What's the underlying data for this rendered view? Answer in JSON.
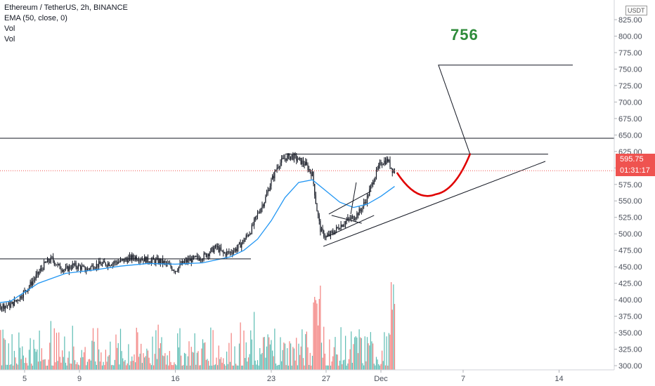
{
  "legend": {
    "symbol": "Ethereum / TetherUS, 2h, BINANCE",
    "indicator1": "EMA (50, close, 0)",
    "indicator2": "Vol",
    "indicator3": "Vol"
  },
  "axis": {
    "unit": "USDT",
    "y_ticks": [
      "825.00",
      "800.00",
      "775.00",
      "750.00",
      "725.00",
      "700.00",
      "675.00",
      "650.00",
      "625.00",
      "600.00",
      "575.00",
      "550.00",
      "525.00",
      "500.00",
      "475.00",
      "450.00",
      "425.00",
      "400.00",
      "375.00",
      "350.00",
      "325.00",
      "300.00"
    ],
    "x_ticks": [
      "5",
      "9",
      "16",
      "23",
      "27",
      "Dec",
      "7",
      "14"
    ]
  },
  "current_price": "595.75",
  "countdown": "01:31:17",
  "annotation_target": "756",
  "colors": {
    "up": "#26a69a",
    "down": "#ef5350",
    "candle": "#131722",
    "ema": "#2196f3",
    "projection": "#e00000",
    "target": "#2e8b3a"
  },
  "chart_data": {
    "type": "candlestick",
    "timeframe": "2h",
    "ylim": [
      300,
      825
    ],
    "y_tick_values": [
      825,
      800,
      775,
      750,
      725,
      700,
      675,
      650,
      625,
      600,
      575,
      550,
      525,
      500,
      475,
      450,
      425,
      400,
      375,
      350,
      325,
      300
    ],
    "x_tick_days": [
      5,
      9,
      16,
      23,
      27,
      31,
      37,
      44
    ],
    "current_price": 595.75,
    "price_path": [
      [
        1.0,
        385
      ],
      [
        2.0,
        395
      ],
      [
        3.0,
        390
      ],
      [
        4.0,
        392
      ],
      [
        4.7,
        405
      ],
      [
        5.3,
        420
      ],
      [
        6.0,
        440
      ],
      [
        6.5,
        455
      ],
      [
        7.0,
        462
      ],
      [
        7.5,
        450
      ],
      [
        8.0,
        445
      ],
      [
        8.5,
        452
      ],
      [
        9.0,
        450
      ],
      [
        9.5,
        445
      ],
      [
        10.0,
        452
      ],
      [
        11.0,
        455
      ],
      [
        12.0,
        458
      ],
      [
        13.0,
        465
      ],
      [
        14.0,
        460
      ],
      [
        15.0,
        458
      ],
      [
        15.5,
        452
      ],
      [
        16.0,
        445
      ],
      [
        16.5,
        455
      ],
      [
        17.0,
        460
      ],
      [
        18.0,
        465
      ],
      [
        19.0,
        480
      ],
      [
        19.5,
        470
      ],
      [
        20.0,
        472
      ],
      [
        20.5,
        478
      ],
      [
        21.0,
        490
      ],
      [
        21.5,
        505
      ],
      [
        22.0,
        530
      ],
      [
        22.5,
        550
      ],
      [
        23.0,
        580
      ],
      [
        23.5,
        605
      ],
      [
        24.0,
        615
      ],
      [
        24.5,
        618
      ],
      [
        25.0,
        612
      ],
      [
        25.5,
        605
      ],
      [
        26.0,
        590
      ],
      [
        26.3,
        540
      ],
      [
        26.6,
        505
      ],
      [
        27.0,
        495
      ],
      [
        27.5,
        502
      ],
      [
        28.0,
        512
      ],
      [
        28.5,
        520
      ],
      [
        29.0,
        525
      ],
      [
        29.5,
        535
      ],
      [
        30.0,
        555
      ],
      [
        30.5,
        585
      ],
      [
        31.0,
        608
      ],
      [
        31.5,
        612
      ],
      [
        31.8,
        598
      ],
      [
        32.0,
        595.75
      ]
    ],
    "ema_path": [
      [
        0,
        398
      ],
      [
        2,
        392
      ],
      [
        4,
        398
      ],
      [
        6,
        425
      ],
      [
        8,
        440
      ],
      [
        10,
        445
      ],
      [
        12,
        451
      ],
      [
        14,
        455
      ],
      [
        16,
        454
      ],
      [
        18,
        456
      ],
      [
        20,
        465
      ],
      [
        21,
        475
      ],
      [
        22,
        492
      ],
      [
        23,
        520
      ],
      [
        24,
        555
      ],
      [
        25,
        578
      ],
      [
        26,
        582
      ],
      [
        27,
        565
      ],
      [
        28,
        548
      ],
      [
        29,
        540
      ],
      [
        30,
        545
      ],
      [
        31,
        557
      ],
      [
        32,
        572
      ]
    ],
    "volume": {
      "note": "volume histogram along bottom of price pane"
    },
    "annotations": {
      "support_line_level": 462,
      "resistance_line_level": 645,
      "triangle_top_level": 621,
      "ascending_trendline": [
        [
          26.8,
          481
        ],
        [
          43.0,
          610
        ]
      ],
      "projection_path": [
        [
          32.2,
          592
        ],
        [
          33.5,
          570
        ],
        [
          35.0,
          560
        ],
        [
          36.5,
          575
        ],
        [
          37.5,
          621
        ]
      ],
      "target_level": 756,
      "target_leg": [
        [
          37.5,
          621
        ],
        [
          35.2,
          756
        ],
        [
          45.0,
          756
        ]
      ],
      "target_label": "756"
    }
  }
}
